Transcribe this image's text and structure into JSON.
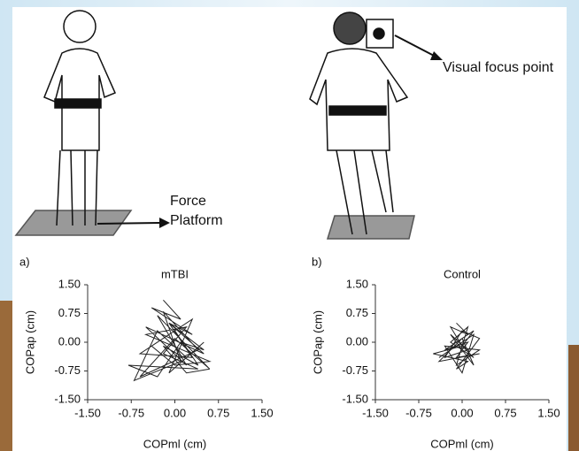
{
  "figure": {
    "force_label_lines": [
      "Force",
      "Platform"
    ],
    "visual_label": "Visual focus point"
  },
  "chart_data": [
    {
      "type": "line",
      "panel_label": "a)",
      "title": "mTBI",
      "x_label": "COPml (cm)",
      "y_label": "COPap (cm)",
      "xlim": [
        -1.5,
        1.5
      ],
      "ylim": [
        -1.5,
        1.5
      ],
      "xticks": [
        {
          "value": -1.5,
          "label": "-1.50"
        },
        -0.75,
        {
          "value": 0,
          "label": "0.00"
        },
        0.75,
        {
          "value": 1.5,
          "label": "1.50"
        }
      ],
      "yticks": [
        {
          "value": -1.5,
          "label": "-1.50"
        },
        -0.75,
        {
          "value": 0,
          "label": "0.00"
        },
        0.75,
        {
          "value": 1.5,
          "label": "1.50"
        }
      ],
      "color": "#222222",
      "x": [
        -0.2,
        0.1,
        -0.4,
        0.3,
        -0.1,
        0.5,
        -0.5,
        0.2,
        -0.3,
        0.6,
        0.0,
        -0.6,
        0.4,
        -0.2,
        0.1,
        -0.7,
        -0.3,
        0.2,
        0.5,
        -0.1,
        0.3,
        -0.4,
        0.0,
        0.6,
        -0.5,
        0.2,
        -0.2,
        0.4,
        -0.8,
        -0.3,
        0.1,
        0.5,
        -0.1,
        0.3,
        -0.6,
        0.0,
        0.4,
        -0.2,
        0.2,
        0.6
      ],
      "values": [
        1.1,
        0.6,
        0.9,
        0.2,
        0.5,
        -0.3,
        0.4,
        -0.6,
        0.7,
        -0.7,
        0.1,
        -0.9,
        -0.2,
        0.8,
        -0.5,
        -1.0,
        0.3,
        -0.4,
        0.0,
        -0.8,
        0.6,
        -0.1,
        -0.6,
        -0.5,
        0.2,
        0.4,
        -0.3,
        -0.7,
        -0.6,
        -0.9,
        0.0,
        -0.2,
        0.5,
        -0.4,
        -0.3,
        0.3,
        -0.6,
        -0.1,
        -0.8,
        -0.7
      ]
    },
    {
      "type": "line",
      "panel_label": "b)",
      "title": "Control",
      "x_label": "COPml (cm)",
      "y_label": "COPap (cm)",
      "xlim": [
        -1.5,
        1.5
      ],
      "ylim": [
        -1.5,
        1.5
      ],
      "xticks": [
        {
          "value": -1.5,
          "label": "-1.50"
        },
        -0.75,
        {
          "value": 0,
          "label": "0.00"
        },
        0.75,
        {
          "value": 1.5,
          "label": "1.50"
        }
      ],
      "yticks": [
        {
          "value": -1.5,
          "label": "-1.50"
        },
        -0.75,
        {
          "value": 0,
          "label": "0.00"
        },
        0.75,
        {
          "value": 1.5,
          "label": "1.50"
        }
      ],
      "color": "#222222",
      "x": [
        -0.1,
        0.1,
        -0.2,
        0.0,
        0.2,
        -0.3,
        0.1,
        -0.1,
        0.3,
        -0.4,
        0.0,
        0.2,
        -0.2,
        0.1,
        -0.3,
        0.0,
        0.3,
        -0.1,
        0.1,
        -0.5,
        0.0,
        0.2,
        -0.2,
        0.1,
        -0.1,
        0.3,
        -0.3,
        0.0,
        0.2,
        -0.4
      ],
      "values": [
        0.5,
        0.2,
        0.4,
        -0.1,
        0.3,
        -0.2,
        0.0,
        -0.4,
        -0.3,
        -0.5,
        0.1,
        -0.6,
        0.2,
        -0.2,
        -0.4,
        0.3,
        0.1,
        -0.7,
        -0.5,
        -0.3,
        -0.1,
        -0.4,
        0.0,
        0.4,
        -0.6,
        -0.2,
        -0.1,
        -0.8,
        0.2,
        -0.4
      ]
    }
  ]
}
